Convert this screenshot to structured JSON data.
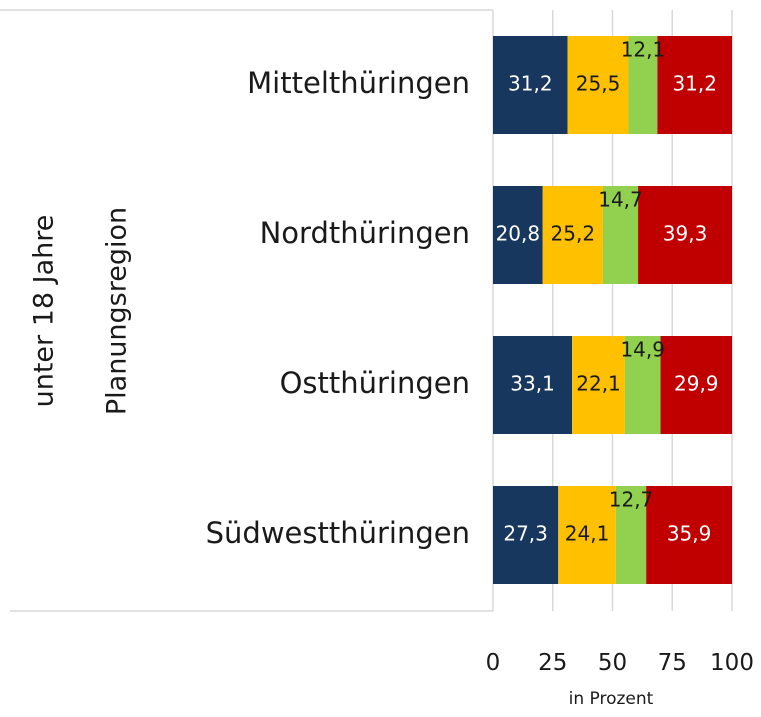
{
  "chart_data": {
    "type": "bar",
    "orientation": "horizontal",
    "stacked": true,
    "group_label": "unter 18 Jahre",
    "category_label": "Planungsregion",
    "categories": [
      "Mittelthüringen",
      "Nordthüringen",
      "Ostthüringen",
      "Südwestthüringen"
    ],
    "series": [
      {
        "color": "#17375e",
        "label_color": "#ffffff",
        "values": [
          31.2,
          20.8,
          33.1,
          27.3
        ],
        "labels": [
          "31,2",
          "20,8",
          "33,1",
          "27,3"
        ]
      },
      {
        "color": "#ffc000",
        "label_color": "#1a1a1a",
        "values": [
          25.5,
          25.2,
          22.1,
          24.1
        ],
        "labels": [
          "25,5",
          "25,2",
          "22,1",
          "24,1"
        ]
      },
      {
        "color": "#92d050",
        "label_color": "#1a1a1a",
        "values": [
          12.1,
          14.7,
          14.9,
          12.7
        ],
        "labels": [
          "12,1",
          "14,7",
          "14,9",
          "12,7"
        ]
      },
      {
        "color": "#c00000",
        "label_color": "#ffffff",
        "values": [
          31.2,
          39.3,
          29.9,
          35.9
        ],
        "labels": [
          "31,2",
          "39,3",
          "29,9",
          "35,9"
        ]
      }
    ],
    "xlim": [
      0,
      100
    ],
    "xticks": [
      0,
      25,
      50,
      75,
      100
    ],
    "xlabel": "in Prozent",
    "grid": true,
    "legend": "none"
  }
}
